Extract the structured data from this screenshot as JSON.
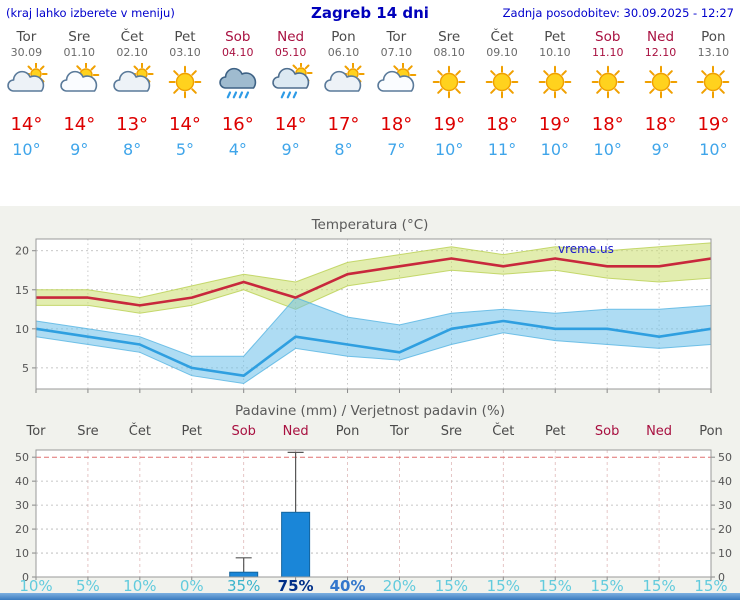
{
  "header": {
    "left_note": "(kraj lahko izberete v meniju)",
    "title": "Zagreb 14 dni",
    "updated": "Zadnja posodobitev: 30.09.2025 - 12:27"
  },
  "watermark": "vreme.us",
  "colors": {
    "link_blue": "#0000cc",
    "day_gray": "#4a4a4a",
    "date_gray": "#6a6a6a",
    "weekend_red": "#a81040",
    "tmax_red": "#dd0000",
    "tmin_blue": "#3fa5ea",
    "max_line": "#c8283c",
    "max_band": "#cbdf6e",
    "max_band_edge": "#b9cf50",
    "min_line": "#2f9fe0",
    "min_band": "#6cc0ea",
    "min_band_edge": "#55b4e2",
    "bar_fill": "#1a86d8",
    "bar_edge": "#13659f",
    "grid_gray": "#b5b5b5",
    "grid_red": "#e07070",
    "grid_pink": "#dfb8b8",
    "axis_text": "#555555",
    "pct_light": "#62cbdd",
    "pct_cyan": "#3ab4cc",
    "pct_mid": "#3377cc",
    "pct_dark": "#002f88"
  },
  "days": [
    {
      "name": "Tor",
      "date": "30.09",
      "weekend": false,
      "icon": "mostly-cloudy",
      "tmax": "14°",
      "tmin": "10°"
    },
    {
      "name": "Sre",
      "date": "01.10",
      "weekend": false,
      "icon": "partly-cloudy",
      "tmax": "14°",
      "tmin": "9°"
    },
    {
      "name": "Čet",
      "date": "02.10",
      "weekend": false,
      "icon": "mostly-cloudy",
      "tmax": "13°",
      "tmin": "8°"
    },
    {
      "name": "Pet",
      "date": "03.10",
      "weekend": false,
      "icon": "sunny",
      "tmax": "14°",
      "tmin": "5°"
    },
    {
      "name": "Sob",
      "date": "04.10",
      "weekend": true,
      "icon": "rain",
      "tmax": "16°",
      "tmin": "4°"
    },
    {
      "name": "Ned",
      "date": "05.10",
      "weekend": true,
      "icon": "rain-sun",
      "tmax": "14°",
      "tmin": "9°"
    },
    {
      "name": "Pon",
      "date": "06.10",
      "weekend": false,
      "icon": "mostly-cloudy",
      "tmax": "17°",
      "tmin": "8°"
    },
    {
      "name": "Tor",
      "date": "07.10",
      "weekend": false,
      "icon": "partly-cloudy",
      "tmax": "18°",
      "tmin": "7°"
    },
    {
      "name": "Sre",
      "date": "08.10",
      "weekend": false,
      "icon": "sunny",
      "tmax": "19°",
      "tmin": "10°"
    },
    {
      "name": "Čet",
      "date": "09.10",
      "weekend": false,
      "icon": "sunny",
      "tmax": "18°",
      "tmin": "11°"
    },
    {
      "name": "Pet",
      "date": "10.10",
      "weekend": false,
      "icon": "sunny",
      "tmax": "19°",
      "tmin": "10°"
    },
    {
      "name": "Sob",
      "date": "11.10",
      "weekend": true,
      "icon": "sunny",
      "tmax": "18°",
      "tmin": "10°"
    },
    {
      "name": "Ned",
      "date": "12.10",
      "weekend": true,
      "icon": "sunny",
      "tmax": "18°",
      "tmin": "9°"
    },
    {
      "name": "Pon",
      "date": "13.10",
      "weekend": false,
      "icon": "sunny",
      "tmax": "19°",
      "tmin": "10°"
    }
  ],
  "chart_data": [
    {
      "type": "line",
      "title": "Temperatura (°C)",
      "categories": [
        "Tor",
        "Sre",
        "Čet",
        "Pet",
        "Sob",
        "Ned",
        "Pon",
        "Tor",
        "Sre",
        "Čet",
        "Pet",
        "Sob",
        "Ned",
        "Pon"
      ],
      "series": [
        {
          "name": "max",
          "values": [
            14,
            14,
            13,
            14,
            16,
            14,
            17,
            18,
            19,
            18,
            19,
            18,
            18,
            19
          ]
        },
        {
          "name": "max_hi",
          "values": [
            15,
            15,
            14,
            15.5,
            17,
            16,
            18.5,
            19.5,
            20.5,
            19.5,
            20.5,
            20,
            20.5,
            21
          ]
        },
        {
          "name": "max_lo",
          "values": [
            13,
            13,
            12,
            13,
            15,
            12.5,
            15.5,
            16.5,
            17.5,
            17,
            17.5,
            16.5,
            16,
            16.5
          ]
        },
        {
          "name": "min",
          "values": [
            10,
            9,
            8,
            5,
            4,
            9,
            8,
            7,
            10,
            11,
            10,
            10,
            9,
            10
          ]
        },
        {
          "name": "min_hi",
          "values": [
            11,
            10,
            9,
            6.5,
            6.5,
            14,
            11.5,
            10.5,
            12,
            12.5,
            12,
            12.5,
            12.5,
            13
          ]
        },
        {
          "name": "min_lo",
          "values": [
            9,
            8,
            7,
            4,
            3,
            7.5,
            6.5,
            6,
            8,
            9.5,
            8.5,
            8,
            7.5,
            8
          ]
        }
      ],
      "ylim": [
        2.3,
        21.5
      ],
      "y_ticks": [
        5,
        10,
        15,
        20
      ],
      "grid": true,
      "legend": "none"
    },
    {
      "type": "bar",
      "title": "Padavine (mm) / Verjetnost padavin (%)",
      "categories": [
        "Tor",
        "Sre",
        "Čet",
        "Pet",
        "Sob",
        "Ned",
        "Pon",
        "Tor",
        "Sre",
        "Čet",
        "Pet",
        "Sob",
        "Ned",
        "Pon"
      ],
      "precip_mm": [
        0,
        0,
        0,
        0,
        2,
        27,
        0,
        0,
        0,
        0,
        0,
        0,
        0,
        0
      ],
      "precip_max_mm": [
        0,
        0,
        0,
        0,
        8,
        52,
        0,
        0,
        0,
        0,
        0,
        0,
        0,
        0
      ],
      "probability_pct": [
        10,
        5,
        10,
        0,
        35,
        75,
        40,
        20,
        15,
        15,
        15,
        15,
        15,
        15
      ],
      "ylim": [
        0,
        53
      ],
      "y_ticks": [
        0,
        10,
        20,
        30,
        40,
        50
      ],
      "grid": true,
      "legend": "none"
    }
  ]
}
